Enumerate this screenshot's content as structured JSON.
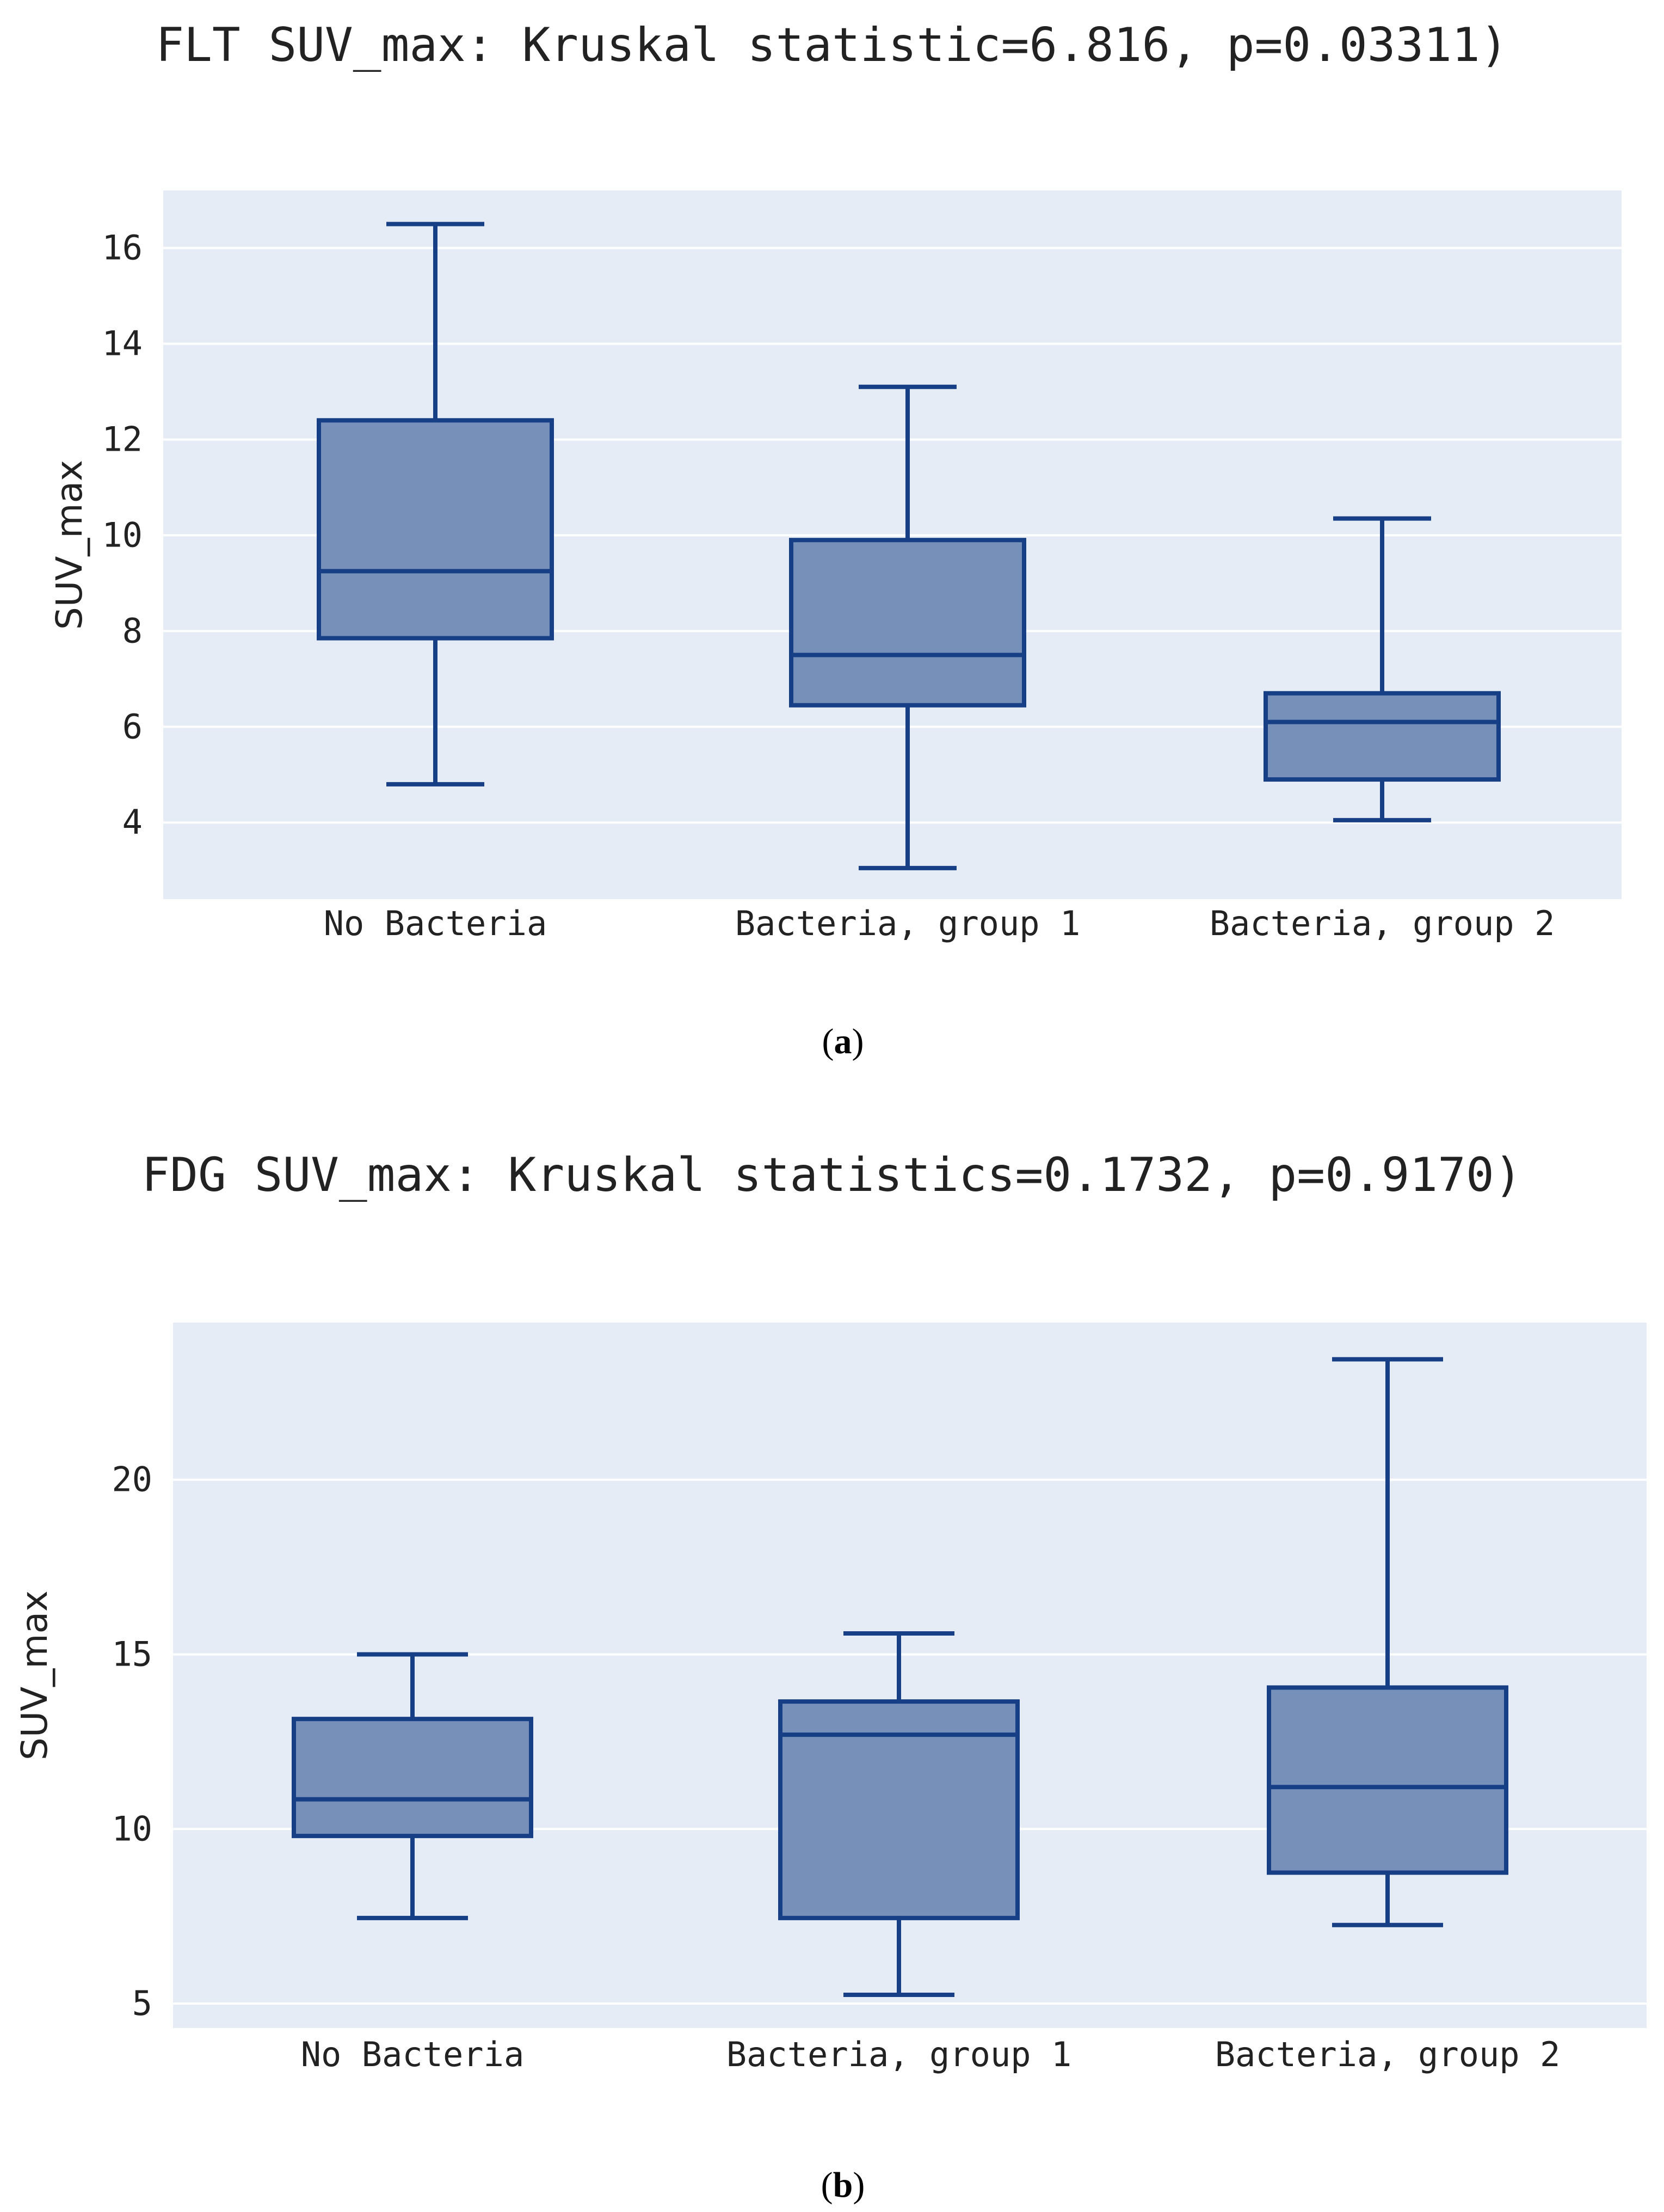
{
  "chart_data": [
    {
      "type": "box",
      "title": "FLT SUV_max: Kruskal statistic=6.816, p=0.03311)",
      "ylabel": "SUV_max",
      "xlabel": "",
      "ylim": [
        2.4,
        17.2
      ],
      "yticks": [
        4,
        6,
        8,
        10,
        12,
        14,
        16
      ],
      "categories": [
        "No Bacteria",
        "Bacteria, group 1",
        "Bacteria, group 2"
      ],
      "boxes": [
        {
          "min": 4.8,
          "q1": 7.85,
          "median": 9.25,
          "q3": 12.4,
          "max": 16.5
        },
        {
          "min": 3.05,
          "q1": 6.45,
          "median": 7.5,
          "q3": 9.9,
          "max": 13.1
        },
        {
          "min": 4.05,
          "q1": 4.9,
          "median": 6.1,
          "q3": 6.7,
          "max": 10.35
        }
      ],
      "panel_label": {
        "open": "(",
        "letter": "a",
        "close": ")"
      }
    },
    {
      "type": "box",
      "title": "FDG SUV_max: Kruskal statistics=0.1732, p=0.9170)",
      "ylabel": "SUV_max",
      "xlabel": "",
      "ylim": [
        4.3,
        24.5
      ],
      "yticks": [
        5,
        10,
        15,
        20
      ],
      "categories": [
        "No Bacteria",
        "Bacteria, group 1",
        "Bacteria, group 2"
      ],
      "boxes": [
        {
          "min": 7.45,
          "q1": 9.8,
          "median": 10.85,
          "q3": 13.15,
          "max": 15.0
        },
        {
          "min": 5.25,
          "q1": 7.45,
          "median": 12.7,
          "q3": 13.65,
          "max": 15.6
        },
        {
          "min": 7.25,
          "q1": 8.75,
          "median": 11.2,
          "q3": 14.05,
          "max": 23.45
        }
      ],
      "panel_label": {
        "open": "(",
        "letter": "b",
        "close": ")"
      }
    }
  ],
  "colors": {
    "plot_background": "#E5ECF6",
    "box_fill": "#7690BA",
    "box_line": "#173F86",
    "grid": "#ffffff"
  }
}
